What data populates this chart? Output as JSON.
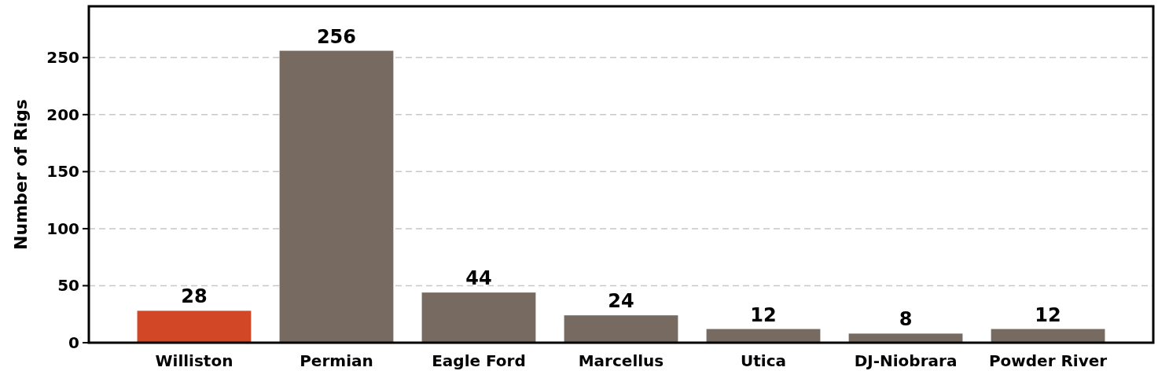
{
  "chart_data": {
    "type": "bar",
    "ylabel": "Number of Rigs",
    "categories": [
      "Williston",
      "Permian",
      "Eagle Ford",
      "Marcellus",
      "Utica",
      "DJ-Niobrara",
      "Powder River"
    ],
    "values": [
      28,
      256,
      44,
      24,
      12,
      8,
      12
    ],
    "colors": [
      "#d24726",
      "#776b61",
      "#776b61",
      "#776b61",
      "#776b61",
      "#776b61",
      "#776b61"
    ],
    "ylim": [
      0,
      295
    ],
    "yticks": [
      0,
      50,
      100,
      150,
      200,
      250
    ],
    "grid": "y",
    "data_labels": true
  }
}
